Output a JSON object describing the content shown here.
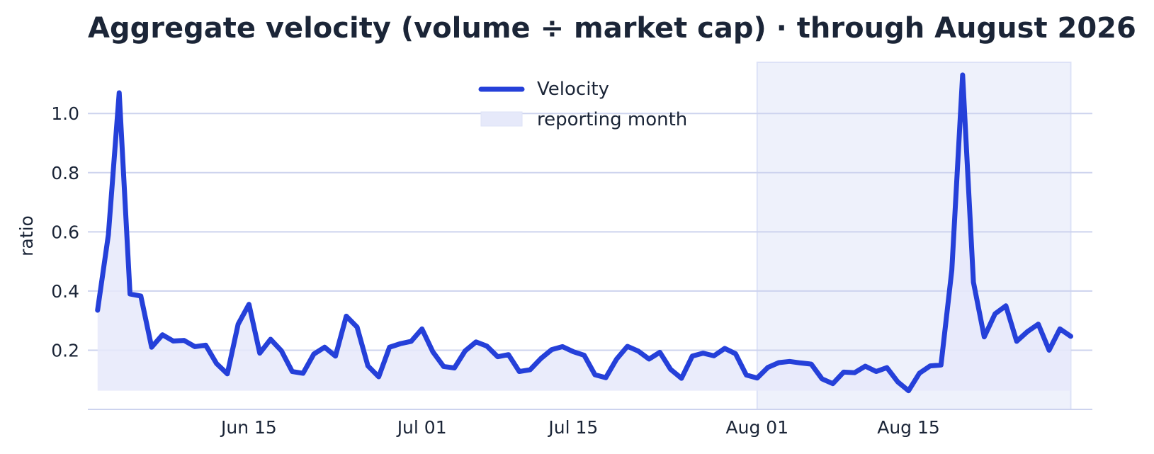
{
  "chart_data": {
    "type": "line",
    "title": "Aggregate velocity (volume ÷ market cap) · through August 2026",
    "xlabel": "",
    "ylabel": "ratio",
    "ylim": [
      0.0,
      1.18
    ],
    "yticks": [
      0.2,
      0.4,
      0.6,
      0.8,
      1.0
    ],
    "ytick_labels": [
      "0.2",
      "0.4",
      "0.6",
      "0.8",
      "1.0"
    ],
    "xlim": [
      "2026-06-01",
      "2026-08-31"
    ],
    "xticks": [
      "2026-06-15",
      "2026-07-01",
      "2026-07-15",
      "2026-08-01",
      "2026-08-15"
    ],
    "xtick_labels": [
      "Jun 15",
      "Jul 01",
      "Jul 15",
      "Aug 01",
      "Aug 15"
    ],
    "grid": "horizontal",
    "legend_position": "top-center",
    "area_baseline": 0.063,
    "highlight_span": {
      "label": "reporting month",
      "start": "2026-08-01",
      "end": "2026-08-30"
    },
    "series": [
      {
        "name": "Velocity",
        "color": "#2540d9",
        "start_date": "2026-06-01",
        "values": [
          0.335,
          0.59,
          1.07,
          0.39,
          0.383,
          0.21,
          0.252,
          0.231,
          0.233,
          0.212,
          0.217,
          0.155,
          0.12,
          0.288,
          0.355,
          0.19,
          0.237,
          0.198,
          0.128,
          0.122,
          0.187,
          0.21,
          0.18,
          0.315,
          0.278,
          0.147,
          0.11,
          0.21,
          0.222,
          0.23,
          0.272,
          0.195,
          0.145,
          0.14,
          0.198,
          0.228,
          0.214,
          0.178,
          0.185,
          0.128,
          0.134,
          0.172,
          0.202,
          0.212,
          0.195,
          0.183,
          0.117,
          0.107,
          0.17,
          0.213,
          0.197,
          0.17,
          0.193,
          0.135,
          0.105,
          0.18,
          0.19,
          0.181,
          0.206,
          0.188,
          0.116,
          0.106,
          0.142,
          0.158,
          0.162,
          0.157,
          0.153,
          0.103,
          0.087,
          0.126,
          0.124,
          0.146,
          0.128,
          0.141,
          0.093,
          0.063,
          0.122,
          0.147,
          0.15,
          0.47,
          1.13,
          0.43,
          0.245,
          0.323,
          0.35,
          0.23,
          0.263,
          0.288,
          0.2,
          0.272,
          0.247
        ]
      }
    ],
    "colors": {
      "line": "#2540d9",
      "area_fill": "#e6e9fa",
      "span_fill": "#eef1fb",
      "span_edge": "#dde2f7",
      "grid": "#cdd3ee",
      "text": "#1b2537"
    }
  }
}
